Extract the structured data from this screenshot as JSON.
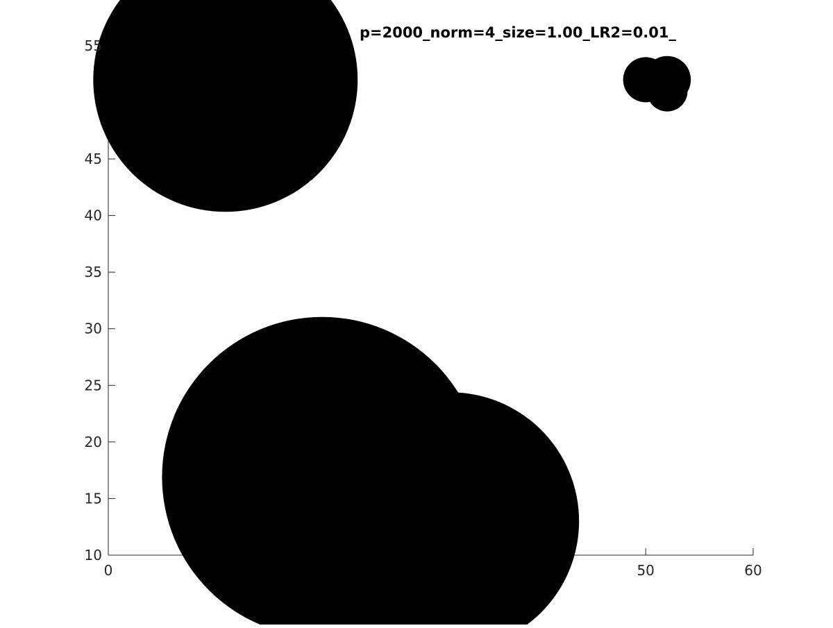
{
  "chart_data": {
    "type": "scatter",
    "title": "p=2000_norm=4_size=1.00_LR2=0.01_",
    "xlabel": "",
    "ylabel": "",
    "xlim": [
      0,
      60
    ],
    "ylim": [
      10,
      57
    ],
    "grid": false,
    "x_ticks": [
      0,
      50,
      60
    ],
    "y_ticks": [
      10,
      15,
      20,
      25,
      30,
      35,
      40,
      45,
      55
    ],
    "marker_color": "#000000",
    "points": [
      {
        "x": 10.9,
        "y": 52.0,
        "r": 12.3
      },
      {
        "x": 1.5,
        "y": 51.5,
        "r": 2.4
      },
      {
        "x": 50.0,
        "y": 52.0,
        "r": 2.1
      },
      {
        "x": 52.0,
        "y": 52.0,
        "r": 2.2
      },
      {
        "x": 52.0,
        "y": 51.0,
        "r": 1.9
      },
      {
        "x": 19.9,
        "y": 16.9,
        "r": 14.9
      },
      {
        "x": 31.8,
        "y": 13.0,
        "r": 12.0
      }
    ]
  }
}
